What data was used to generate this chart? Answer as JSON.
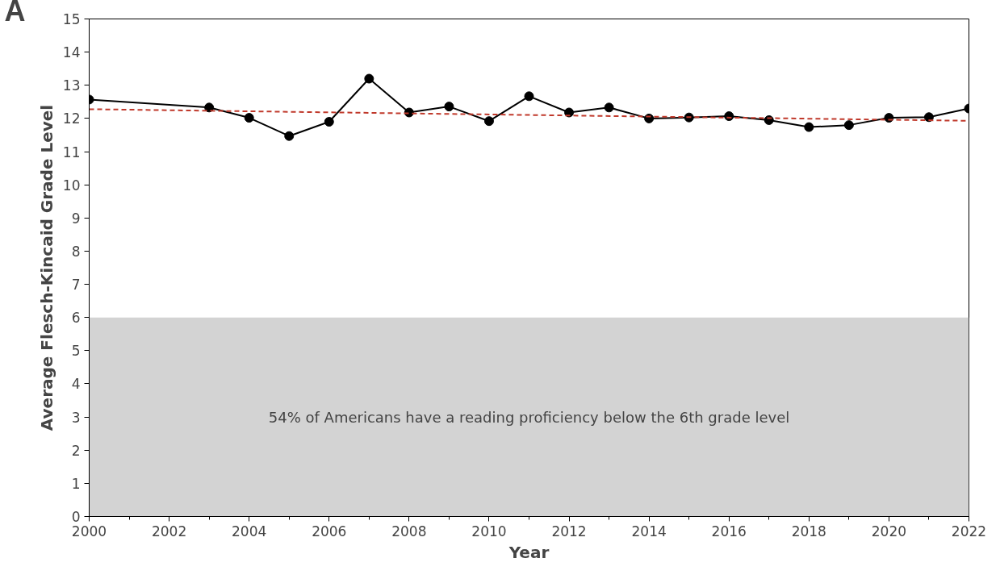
{
  "chart_data": {
    "type": "line",
    "xlabel": "Year",
    "ylabel": "Average Flesch-Kincaid Grade Level",
    "annotations": [
      "A"
    ],
    "xlim": [
      2000,
      2022
    ],
    "xticks": [
      2000,
      2002,
      2004,
      2006,
      2008,
      2010,
      2012,
      2014,
      2016,
      2018,
      2020,
      2022
    ],
    "ylim": [
      0,
      15
    ],
    "yticks": [
      0,
      1,
      2,
      3,
      4,
      5,
      6,
      7,
      8,
      9,
      10,
      11,
      12,
      13,
      14,
      15
    ],
    "grid": false,
    "bands": [
      {
        "axis": "y",
        "from": 0,
        "to": 6,
        "label": "54% of Americans have a reading proficiency below the 6th grade level",
        "color": "#d3d3d3"
      }
    ],
    "series": [
      {
        "color": "#000000",
        "marker": "circle",
        "line_style": "solid",
        "x": [
          2000,
          2003,
          2004,
          2005,
          2006,
          2007,
          2008,
          2009,
          2010,
          2011,
          2012,
          2013,
          2014,
          2015,
          2016,
          2017,
          2018,
          2019,
          2020,
          2021,
          2022
        ],
        "values": [
          12.57,
          12.33,
          12.02,
          11.47,
          11.9,
          13.2,
          12.18,
          12.36,
          11.92,
          12.67,
          12.18,
          12.33,
          12.0,
          12.03,
          12.07,
          11.95,
          11.74,
          11.8,
          12.02,
          12.04,
          12.3
        ]
      },
      {
        "type": "line",
        "color": "#c0392b",
        "marker": "none",
        "line_style": "dashed",
        "x": [
          2000,
          2022
        ],
        "values": [
          12.28,
          11.93
        ]
      }
    ]
  }
}
